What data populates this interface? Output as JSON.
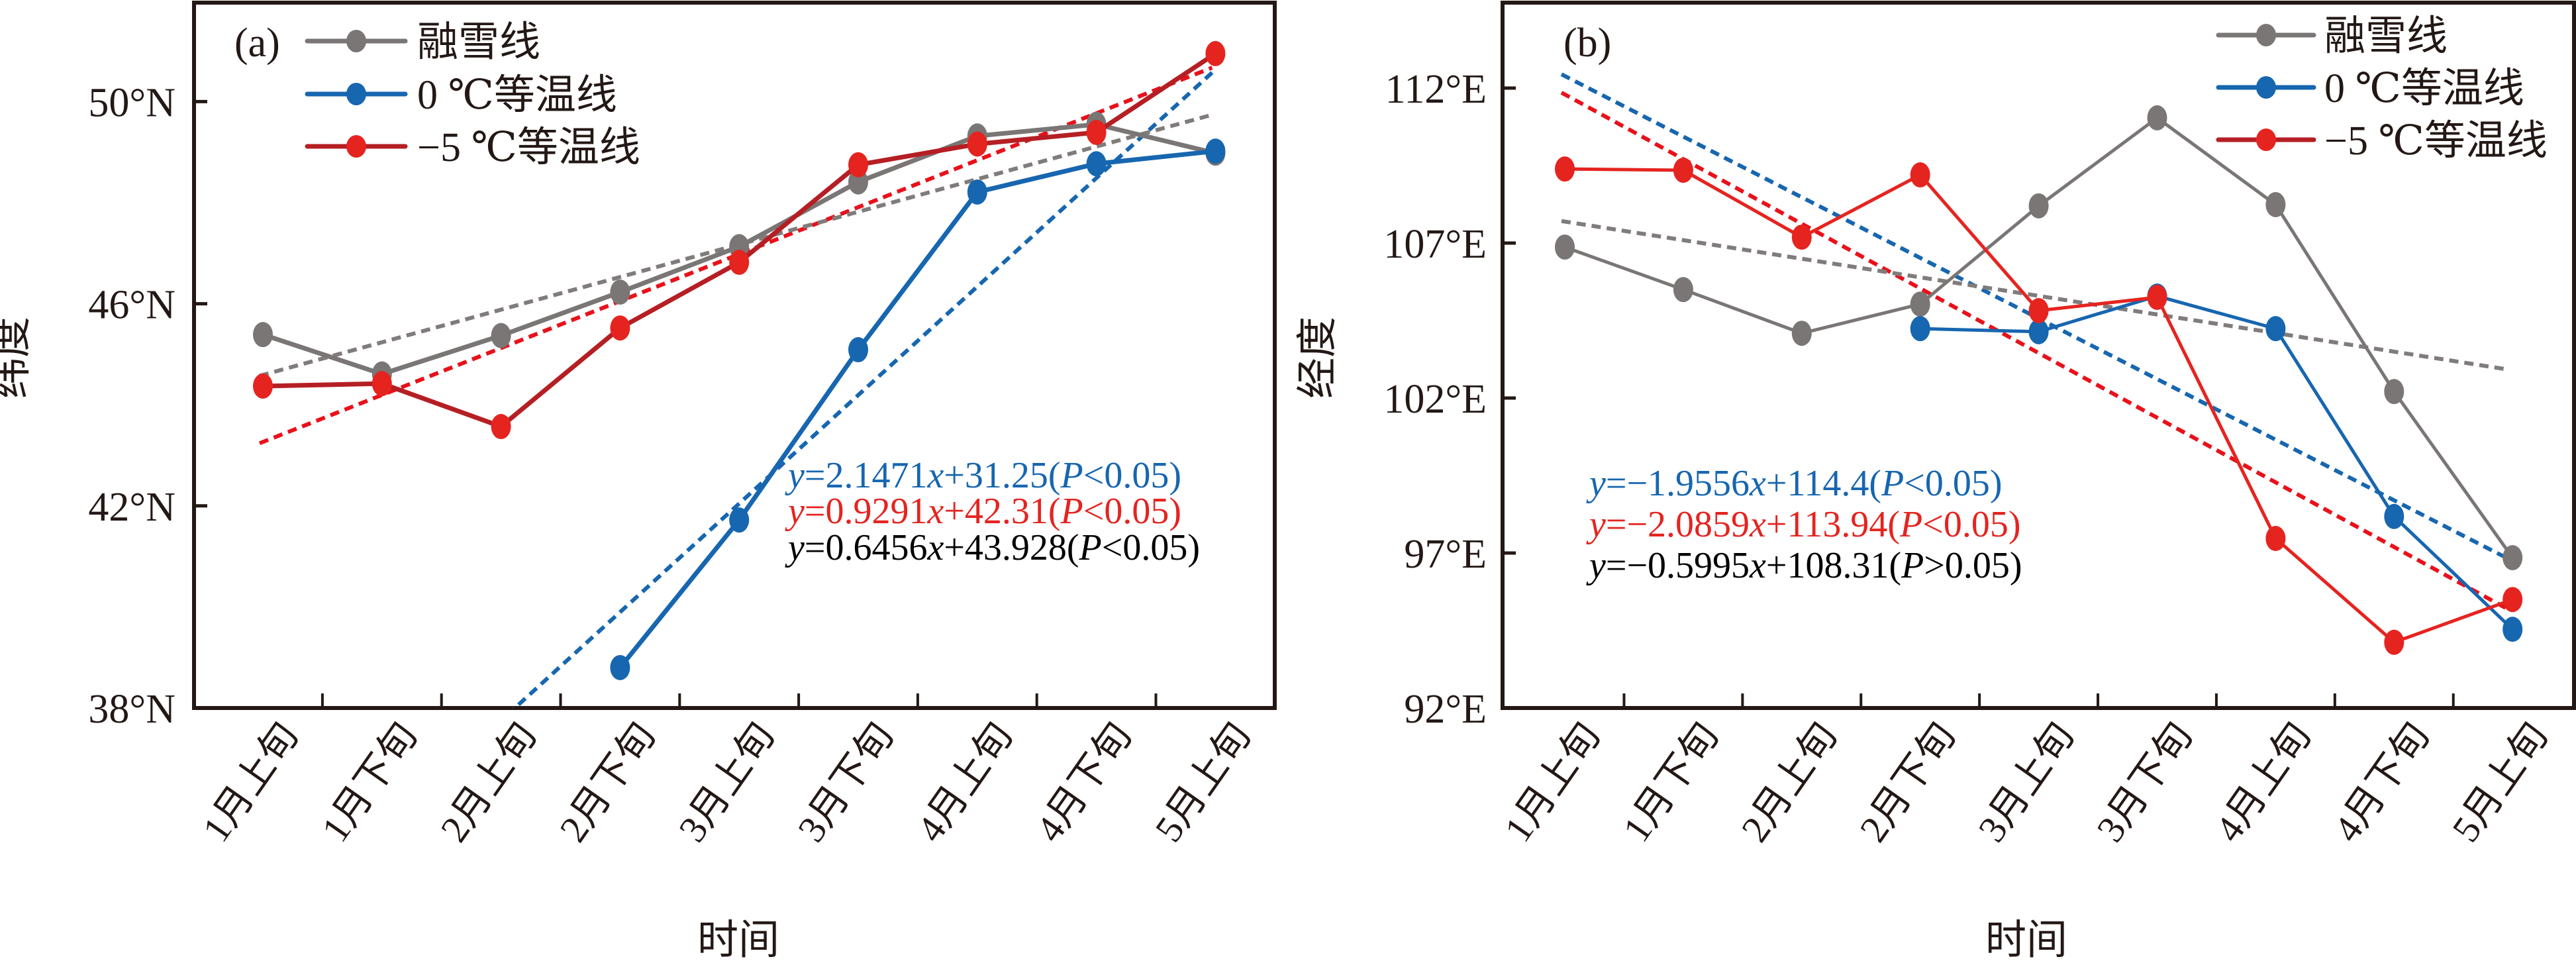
{
  "colors": {
    "snowline": "#7a7675",
    "isotherm_0": "#1766b0",
    "isotherm_m5_marker": "#e52420",
    "isotherm_m5_line_a": "#b51f24",
    "isotherm_m5_line_b": "#e52420",
    "axis": "#231815",
    "text": "#231815"
  },
  "chart_data": [
    {
      "type": "line",
      "panel_tag": "(a)",
      "title": "",
      "xlabel": "时间",
      "ylabel": "纬度",
      "categories": [
        "1月上旬",
        "1月下旬",
        "2月上旬",
        "2月下旬",
        "3月上旬",
        "3月下旬",
        "4月上旬",
        "4月下旬",
        "5月上旬"
      ],
      "ylim": [
        38,
        51.5
      ],
      "yticks": [
        38,
        42,
        46,
        50
      ],
      "ytick_labels": [
        "38°N",
        "42°N",
        "46°N",
        "50°N"
      ],
      "grid": false,
      "legend_position": "top-left",
      "series": [
        {
          "name": "融雪线",
          "color_key": "snowline",
          "values": [
            45.39,
            44.61,
            45.37,
            46.23,
            47.13,
            48.41,
            49.32,
            49.55,
            48.98
          ]
        },
        {
          "name": "0 ℃等温线",
          "color_key": "isotherm_0",
          "values": [
            null,
            null,
            null,
            38.8,
            41.72,
            45.09,
            48.21,
            48.77,
            49.02
          ]
        },
        {
          "name": "−5 ℃等温线",
          "color_key": "isotherm_m5",
          "values": [
            44.37,
            44.42,
            43.57,
            45.52,
            46.82,
            48.75,
            49.16,
            49.39,
            50.95
          ]
        }
      ],
      "trendlines": [
        {
          "series": "0 ℃等温线",
          "slope": 2.1471,
          "intercept": 31.25,
          "equation": {
            "lhs": "y",
            "body": "=2.1471",
            "x": "x",
            "rest": "+31.25(",
            "p": "P",
            "tail": "<0.05)"
          }
        },
        {
          "series": "−5 ℃等温线",
          "slope": 0.9291,
          "intercept": 42.31,
          "equation": {
            "lhs": "y",
            "body": "=0.9291",
            "x": "x",
            "rest": "+42.31(",
            "p": "P",
            "tail": "<0.05)"
          }
        },
        {
          "series": "融雪线",
          "slope": 0.6456,
          "intercept": 43.928,
          "equation": {
            "lhs": "y",
            "body": "=0.6456",
            "x": "x",
            "rest": "+43.928(",
            "p": "P",
            "tail": "<0.05)"
          }
        }
      ]
    },
    {
      "type": "line",
      "panel_tag": "(b)",
      "title": "",
      "xlabel": "时间",
      "ylabel": "经度",
      "categories": [
        "1月上旬",
        "1月下旬",
        "2月上旬",
        "2月下旬",
        "3月上旬",
        "3月下旬",
        "4月上旬",
        "4月下旬",
        "5月上旬"
      ],
      "ylim": [
        92,
        114.8
      ],
      "yticks": [
        92,
        97,
        102,
        107,
        112
      ],
      "ytick_labels": [
        "92°E",
        "97°E",
        "102°E",
        "107°E",
        "112°E"
      ],
      "grid": false,
      "legend_position": "top-right",
      "series": [
        {
          "name": "融雪线",
          "color_key": "snowline",
          "values": [
            106.87,
            105.5,
            104.09,
            105.03,
            108.2,
            111.04,
            108.24,
            102.21,
            96.85
          ]
        },
        {
          "name": "0 ℃等温线",
          "color_key": "isotherm_0",
          "values": [
            null,
            null,
            null,
            104.24,
            104.14,
            105.29,
            104.24,
            98.18,
            94.54
          ]
        },
        {
          "name": "−5 ℃等温线",
          "color_key": "isotherm_m5",
          "values": [
            109.39,
            109.35,
            107.19,
            109.2,
            104.82,
            105.25,
            97.47,
            94.12,
            95.5
          ]
        }
      ],
      "trendlines": [
        {
          "series": "0 ℃等温线",
          "slope": -1.9556,
          "intercept": 114.4,
          "equation": {
            "lhs": "y",
            "body": "=−1.9556",
            "x": "x",
            "rest": "+114.4(",
            "p": "P",
            "tail": "<0.05)"
          }
        },
        {
          "series": "−5 ℃等温线",
          "slope": -2.0859,
          "intercept": 113.94,
          "equation": {
            "lhs": "y",
            "body": "=−2.0859",
            "x": "x",
            "rest": "+113.94(",
            "p": "P",
            "tail": "<0.05)"
          }
        },
        {
          "series": "融雪线",
          "slope": -0.5995,
          "intercept": 108.31,
          "equation": {
            "lhs": "y",
            "body": "=−0.5995",
            "x": "x",
            "rest": "+108.31(",
            "p": "P",
            "tail": ">0.05)"
          }
        }
      ]
    }
  ]
}
